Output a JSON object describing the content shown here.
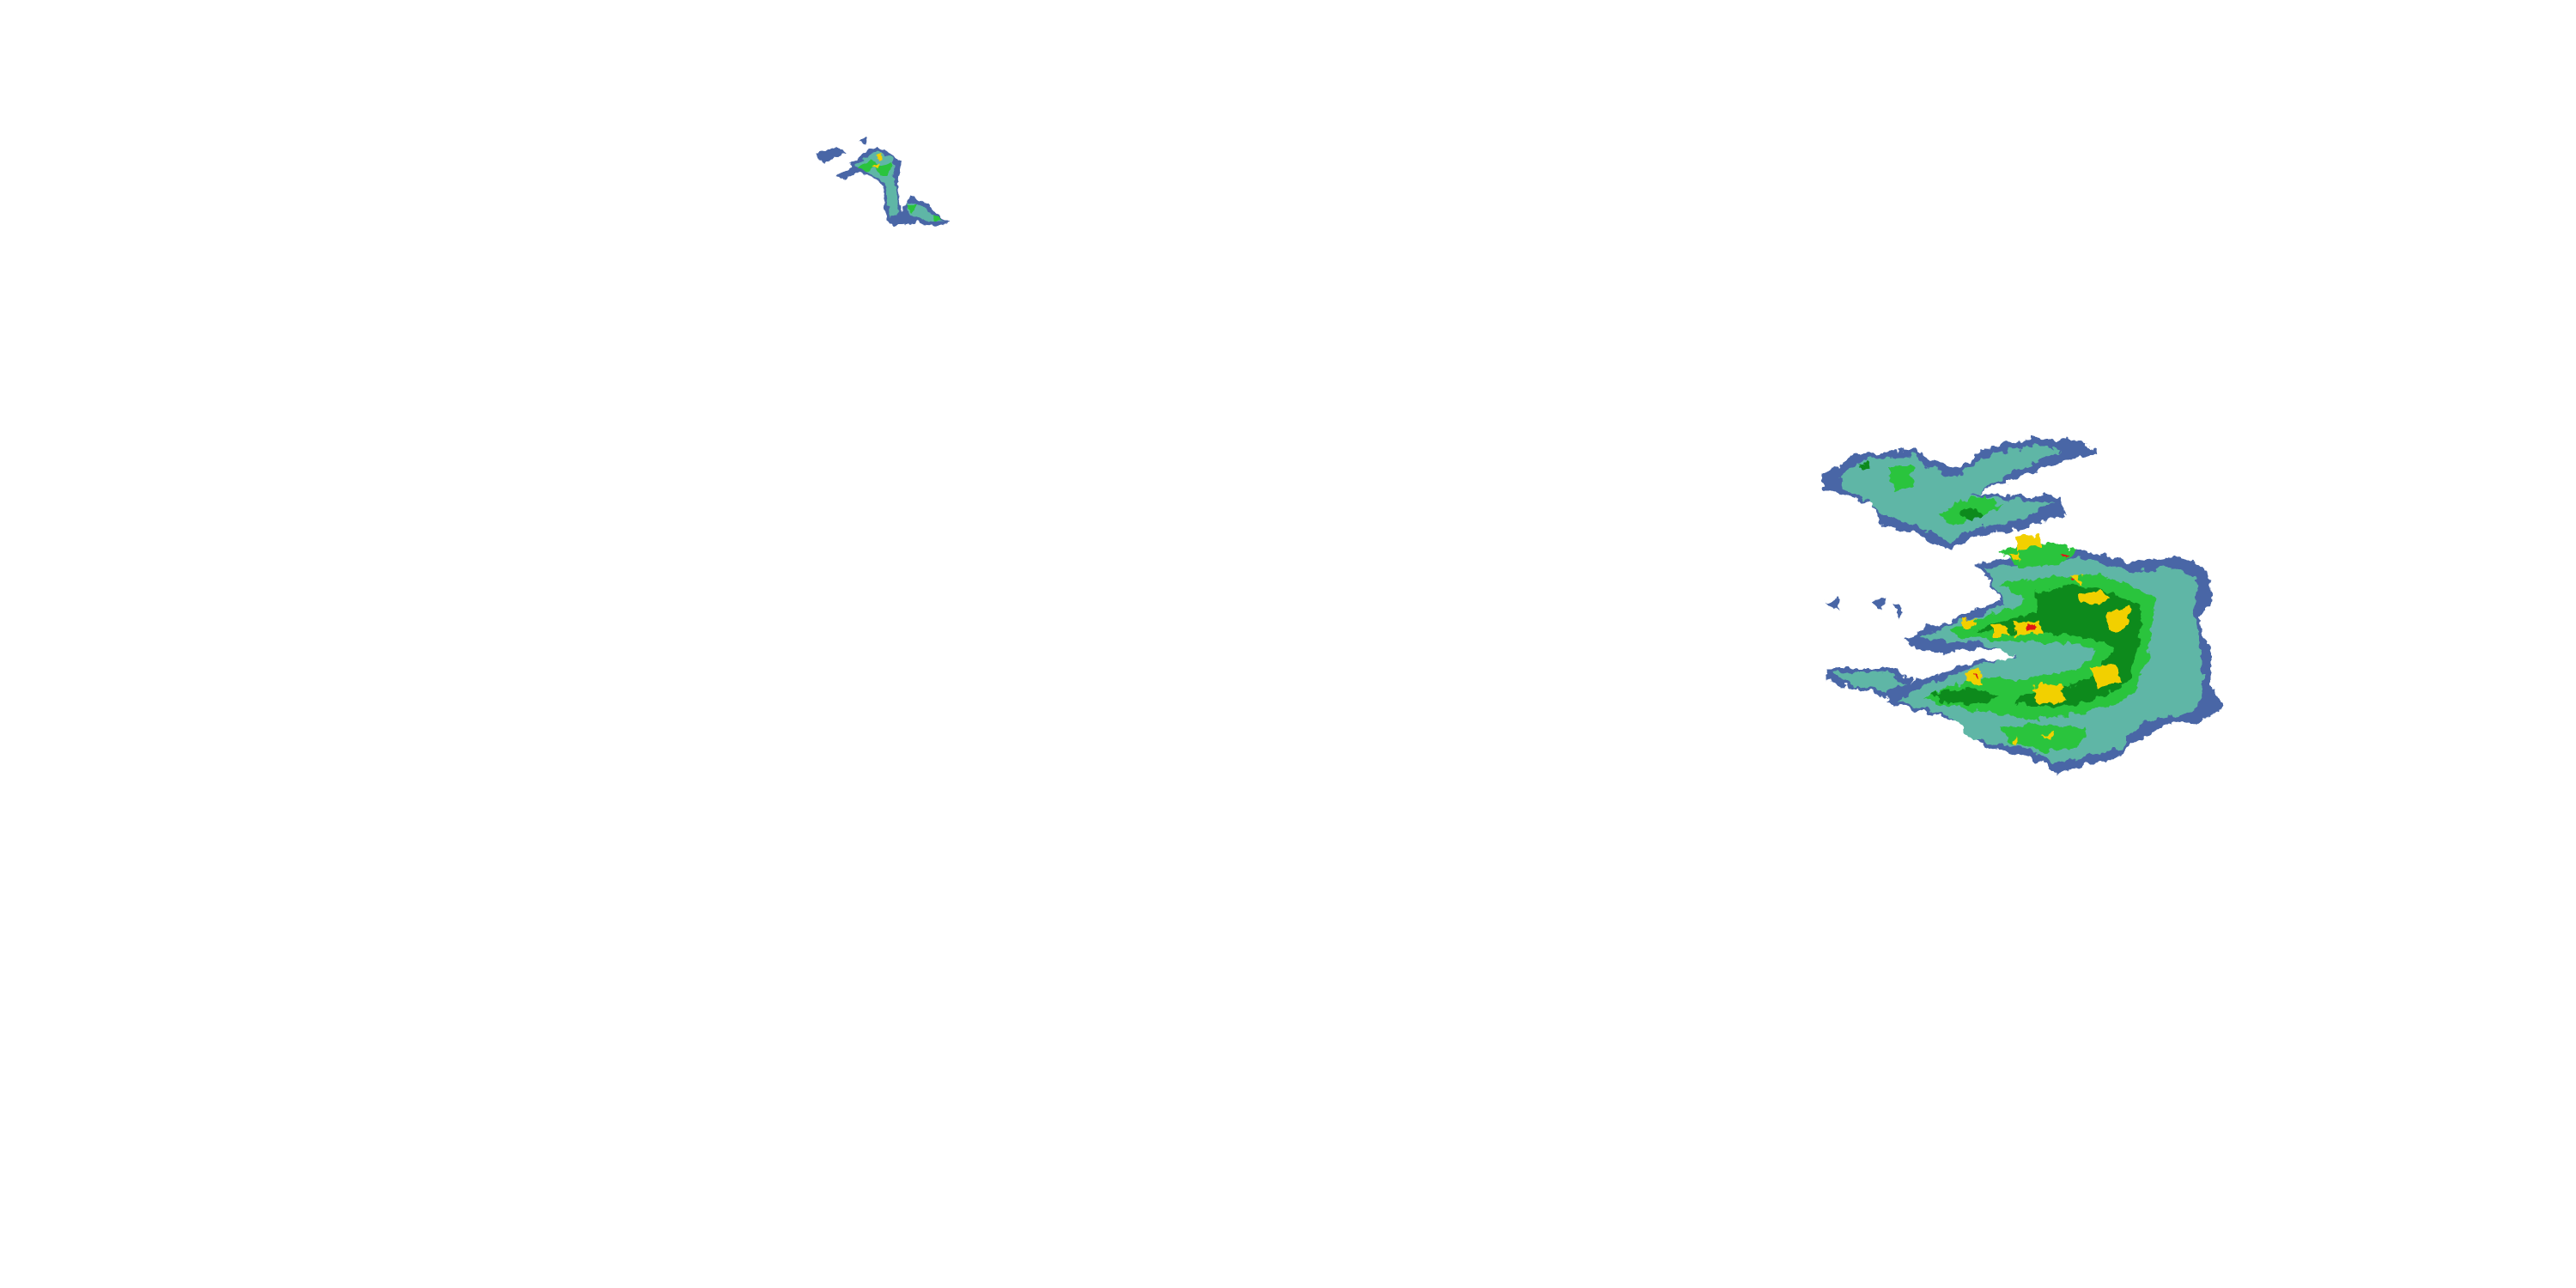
{
  "map": {
    "type": "weather-radar-reflectivity",
    "background": "#ffffff",
    "reflectivity_colors": {
      "very_light": "#4a66a6",
      "light": "#5fb6a6",
      "moderate": "#2cc43c",
      "heavy": "#0a8a1e",
      "very_heavy": "#f2d000",
      "intense": "#f08a00",
      "extreme": "#e01818"
    }
  }
}
